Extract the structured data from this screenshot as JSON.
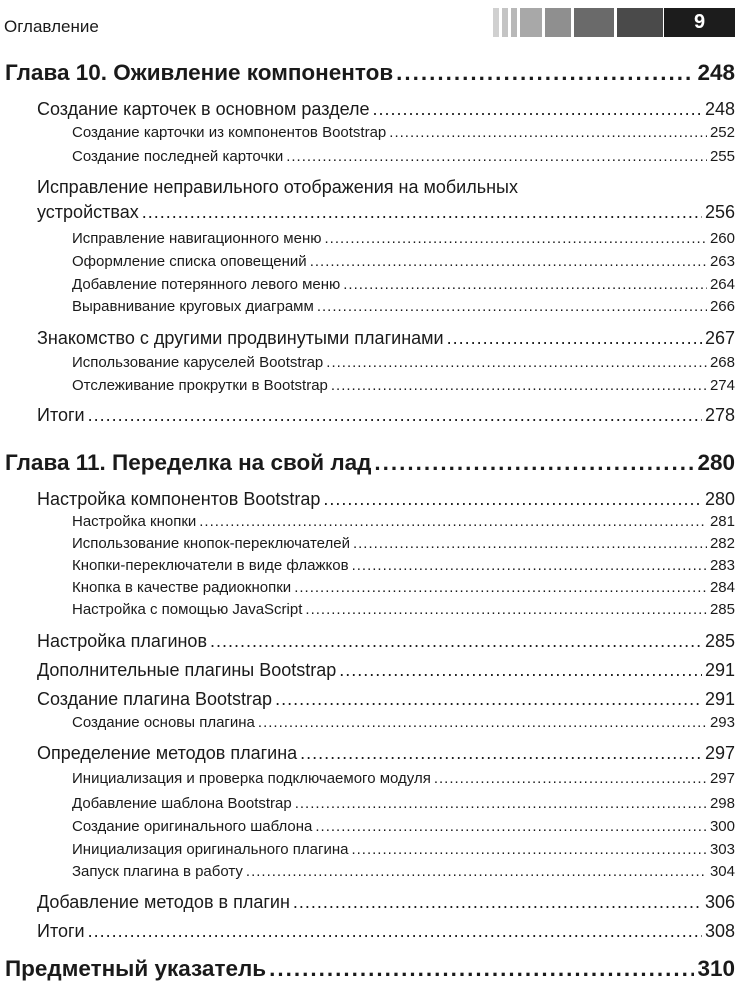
{
  "header": {
    "section_title": "Оглавление",
    "page_number": "9",
    "bar_colors": [
      "#d0d0d0",
      "#c4c4c4",
      "#b8b8b8",
      "#a8a8a8",
      "#8f8f8f",
      "#6a6a6a",
      "#4a4a4a"
    ]
  },
  "entries": [
    {
      "level": 0,
      "title": "Глава 10. Оживление компонентов",
      "page": "248"
    },
    {
      "level": 1,
      "title": "Создание карточек в основном разделе",
      "page": "248"
    },
    {
      "level": 2,
      "title": "Создание карточки из компонентов Bootstrap",
      "page": "252"
    },
    {
      "level": 2,
      "title": "Создание последней карточки",
      "page": "255"
    },
    {
      "level": 1,
      "title_lines": [
        "Исправление неправильного отображения на мобильных",
        "устройствах"
      ],
      "page": "256"
    },
    {
      "level": 2,
      "title": "Исправление навигационного меню",
      "page": "260"
    },
    {
      "level": 2,
      "title": "Оформление списка оповещений",
      "page": "263"
    },
    {
      "level": 2,
      "title": "Добавление потерянного левого меню",
      "page": "264"
    },
    {
      "level": 2,
      "title": "Выравнивание круговых диаграмм",
      "page": "266"
    },
    {
      "level": 1,
      "title": "Знакомство с другими продвинутыми плагинами",
      "page": "267"
    },
    {
      "level": 2,
      "title": "Использование каруселей Bootstrap",
      "page": "268"
    },
    {
      "level": 2,
      "title": "Отслеживание прокрутки в Bootstrap",
      "page": "274"
    },
    {
      "level": 1,
      "title": "Итоги",
      "page": "278"
    },
    {
      "level": 0,
      "title": "Глава 11. Переделка на свой лад",
      "page": "280"
    },
    {
      "level": 1,
      "title": "Настройка компонентов Bootstrap",
      "page": "280"
    },
    {
      "level": 2,
      "title": "Настройка кнопки",
      "page": "281"
    },
    {
      "level": 2,
      "title": "Использование кнопок-переключателей",
      "page": "282"
    },
    {
      "level": 2,
      "title": "Кнопки-переключатели в виде флажков",
      "page": "283"
    },
    {
      "level": 2,
      "title": "Кнопка в качестве радиокнопки",
      "page": "284"
    },
    {
      "level": 2,
      "title": "Настройка с помощью JavaScript",
      "page": "285"
    },
    {
      "level": 1,
      "title": "Настройка плагинов",
      "page": "285"
    },
    {
      "level": 1,
      "title": "Дополнительные плагины Bootstrap",
      "page": "291"
    },
    {
      "level": 1,
      "title": "Создание плагина Bootstrap",
      "page": "291"
    },
    {
      "level": 2,
      "title": "Создание основы плагина",
      "page": "293"
    },
    {
      "level": 1,
      "title": "Определение методов плагина",
      "page": "297"
    },
    {
      "level": 2,
      "title": "Инициализация и проверка подключаемого модуля",
      "page": "297"
    },
    {
      "level": 2,
      "title": "Добавление шаблона Bootstrap",
      "page": "298"
    },
    {
      "level": 2,
      "title": "Создание оригинального шаблона",
      "page": "300"
    },
    {
      "level": 2,
      "title": "Инициализация оригинального плагина",
      "page": "303"
    },
    {
      "level": 2,
      "title": "Запуск плагина в работу",
      "page": "304"
    },
    {
      "level": 1,
      "title": "Добавление методов в плагин",
      "page": "306"
    },
    {
      "level": 1,
      "title": "Итоги",
      "page": "308"
    },
    {
      "level": 0,
      "title": "Предметный указатель",
      "page": "310"
    }
  ]
}
